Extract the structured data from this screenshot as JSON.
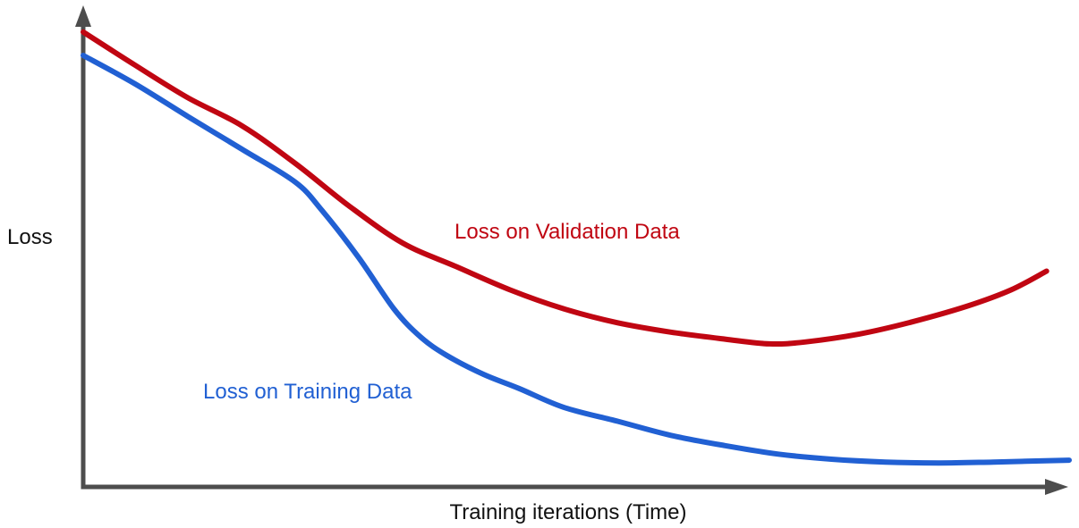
{
  "labels": {
    "y_axis": "Loss",
    "x_axis": "Training iterations (Time)",
    "validation_series": "Loss on Validation Data",
    "training_series": "Loss on Training Data"
  },
  "colors": {
    "validation": "#c00612",
    "training": "#2160d3",
    "axis": "#4d4d4d",
    "text": "#111111"
  },
  "chart_data": {
    "type": "line",
    "title": "",
    "xlabel": "Training iterations (Time)",
    "ylabel": "Loss",
    "xlim": [
      0,
      100
    ],
    "ylim": [
      0,
      1
    ],
    "grid": false,
    "ticks": "none",
    "legend": "inline-curve-labels",
    "series": [
      {
        "name": "Loss on Validation Data",
        "slug": "validation",
        "color": "#c00612",
        "x": [
          0,
          5.2,
          10.6,
          16.1,
          21.5,
          26.9,
          32.4,
          37.8,
          43.3,
          48.7,
          54.2,
          59.6,
          65.1,
          69.6,
          73.2,
          78.7,
          84.1,
          89.6,
          94.1,
          97.7
        ],
        "y": [
          0.97,
          0.9,
          0.83,
          0.77,
          0.69,
          0.6,
          0.52,
          0.47,
          0.42,
          0.38,
          0.35,
          0.33,
          0.315,
          0.305,
          0.309,
          0.326,
          0.352,
          0.385,
          0.42,
          0.46
        ]
      },
      {
        "name": "Loss on Training Data",
        "slug": "training",
        "color": "#2160d3",
        "x": [
          0,
          5.2,
          10.6,
          16.1,
          21.5,
          24.2,
          27.9,
          31.5,
          34.2,
          36.9,
          40.6,
          44.2,
          48.7,
          54.2,
          59.6,
          65.1,
          70.5,
          75.9,
          81.4,
          86.8,
          92.3,
          100
        ],
        "y": [
          0.92,
          0.86,
          0.79,
          0.72,
          0.65,
          0.59,
          0.49,
          0.38,
          0.32,
          0.28,
          0.24,
          0.21,
          0.17,
          0.14,
          0.11,
          0.088,
          0.07,
          0.059,
          0.053,
          0.051,
          0.053,
          0.057
        ]
      }
    ]
  }
}
